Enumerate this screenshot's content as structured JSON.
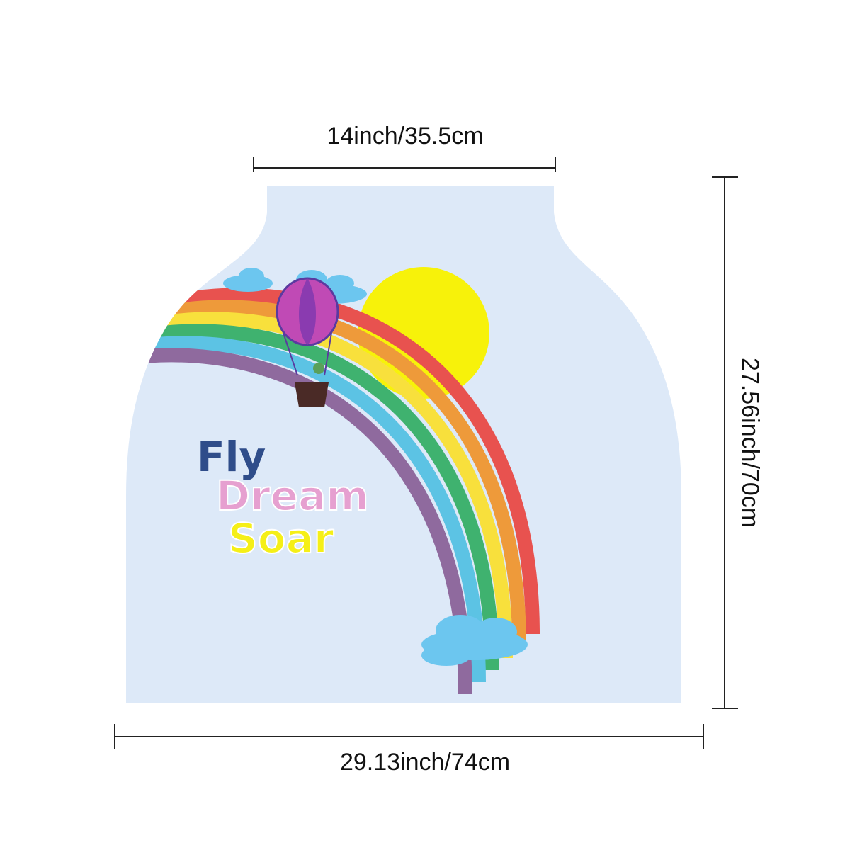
{
  "dimensions": {
    "top": "14inch/35.5cm",
    "side": "27.56inch/70cm",
    "bottom": "29.13inch/74cm"
  },
  "slogan": [
    "Fly",
    "Dream",
    "Soar"
  ]
}
